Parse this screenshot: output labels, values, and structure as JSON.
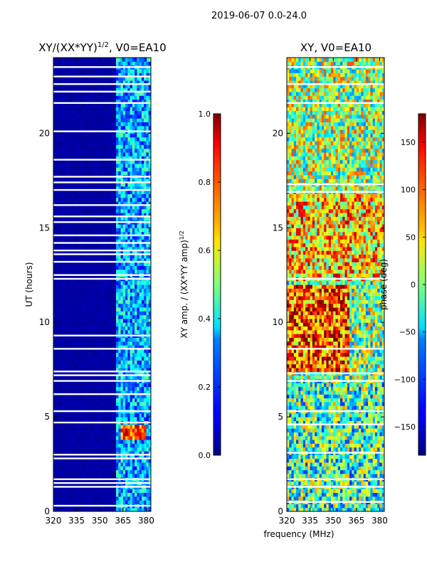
{
  "figure": {
    "suptitle": "2019-06-07 0.0-24.0",
    "xlabel": "frequency (MHz)"
  },
  "chart_data": [
    {
      "type": "heatmap",
      "title": "XY/(XX*YY)",
      "title_exponent": "1/2",
      "title_suffix": ", V0=EA10",
      "xlabel": "",
      "ylabel": "UT (hours)",
      "xlim": [
        320,
        383
      ],
      "ylim": [
        0,
        24
      ],
      "xticks": [
        "320",
        "335",
        "350",
        "365",
        "380"
      ],
      "xtick_values": [
        320,
        335,
        350,
        365,
        380
      ],
      "yticks": [
        "0",
        "5",
        "10",
        "15",
        "20"
      ],
      "ytick_values": [
        0,
        5,
        10,
        15,
        20
      ],
      "colormap": "jet",
      "colorbar": {
        "label": "XY amp. / (XX*YY amp)",
        "label_exponent": "1/2",
        "range": [
          0.0,
          1.0
        ],
        "ticks": [
          "0.0",
          "0.2",
          "0.4",
          "0.6",
          "0.8",
          "1.0"
        ],
        "tick_values": [
          0.0,
          0.2,
          0.4,
          0.6,
          0.8,
          1.0
        ]
      },
      "regions": [
        {
          "freq": [
            320,
            360
          ],
          "ut": [
            0,
            24
          ],
          "value": 0.02
        },
        {
          "freq": [
            360,
            383
          ],
          "ut": [
            0,
            24
          ],
          "value": 0.3
        },
        {
          "freq": [
            363,
            380
          ],
          "ut": [
            3.8,
            4.6
          ],
          "value": 0.8
        }
      ],
      "blank_ut_rows": [
        0.3,
        1.3,
        1.5,
        1.7,
        2.8,
        3.0,
        4.7,
        5.3,
        6.2,
        6.9,
        7.2,
        7.4,
        8.6,
        9.3,
        12.3,
        12.5,
        13.2,
        13.6,
        13.8,
        14.2,
        14.6,
        15.3,
        15.6,
        16.2,
        17.0,
        17.4,
        17.7,
        18.6,
        20.1,
        21.6,
        22.2,
        22.6,
        23.0,
        23.5
      ]
    },
    {
      "type": "heatmap",
      "title": "XY, V0=EA10",
      "xlabel": "frequency (MHz)",
      "ylabel": "",
      "xlim": [
        320,
        383
      ],
      "ylim": [
        0,
        24
      ],
      "xticks": [
        "320",
        "335",
        "350",
        "365",
        "380"
      ],
      "xtick_values": [
        320,
        335,
        350,
        365,
        380
      ],
      "yticks": [
        "0",
        "5",
        "10",
        "15",
        "20"
      ],
      "ytick_values": [
        0,
        5,
        10,
        15,
        20
      ],
      "colormap": "jet",
      "colorbar": {
        "label": "phase (deg)",
        "range": [
          -180,
          180
        ],
        "ticks": [
          "−150",
          "−100",
          "−50",
          "0",
          "50",
          "100",
          "150"
        ],
        "tick_values": [
          -150,
          -100,
          -50,
          0,
          50,
          100,
          150
        ]
      },
      "regions": [
        {
          "freq": [
            320,
            383
          ],
          "ut": [
            12.2,
            16.8
          ],
          "value": 60
        },
        {
          "freq": [
            320,
            360
          ],
          "ut": [
            7.5,
            12
          ],
          "value": 110
        },
        {
          "freq": [
            320,
            383
          ],
          "ut": [
            0,
            7
          ],
          "value": -20
        },
        {
          "freq": [
            320,
            383
          ],
          "ut": [
            17,
            24
          ],
          "value": 10
        }
      ],
      "blank_ut_rows": [
        0.5,
        1.3,
        1.7,
        3.1,
        4.6,
        5.3,
        6.9,
        7.3,
        8.6,
        12.3,
        16.9,
        17.3,
        21.6,
        22.6,
        23.5
      ]
    }
  ]
}
